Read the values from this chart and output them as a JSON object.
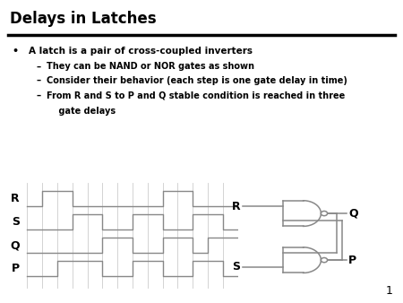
{
  "title": "Delays in Latches",
  "background_color": "#ffffff",
  "bullet_text": "A latch is a pair of cross-coupled inverters",
  "sub_bullets": [
    "They can be NAND or NOR gates as shown",
    "Consider their behavior (each step is one gate delay in time)",
    "From R and S to P and Q stable condition is reached in three gate delays"
  ],
  "waveform_labels": [
    "R",
    "S",
    "Q",
    "P"
  ],
  "page_number": "1",
  "line_color": "#888888",
  "grid_color": "#cccccc",
  "text_color": "#000000",
  "R_times": [
    0,
    1,
    3,
    9,
    11,
    14
  ],
  "R_vals": [
    0,
    1,
    0,
    1,
    0,
    0
  ],
  "S_times": [
    0,
    3,
    5,
    7,
    9,
    11,
    13,
    14
  ],
  "S_vals": [
    0,
    1,
    0,
    1,
    0,
    1,
    0,
    0
  ],
  "Q_times": [
    0,
    5,
    7,
    9,
    11,
    12,
    14
  ],
  "Q_vals": [
    0,
    1,
    0,
    1,
    0,
    1,
    1
  ],
  "P_times": [
    0,
    2,
    5,
    7,
    9,
    11,
    13,
    14
  ],
  "P_vals": [
    0,
    1,
    0,
    1,
    0,
    1,
    0,
    0
  ]
}
